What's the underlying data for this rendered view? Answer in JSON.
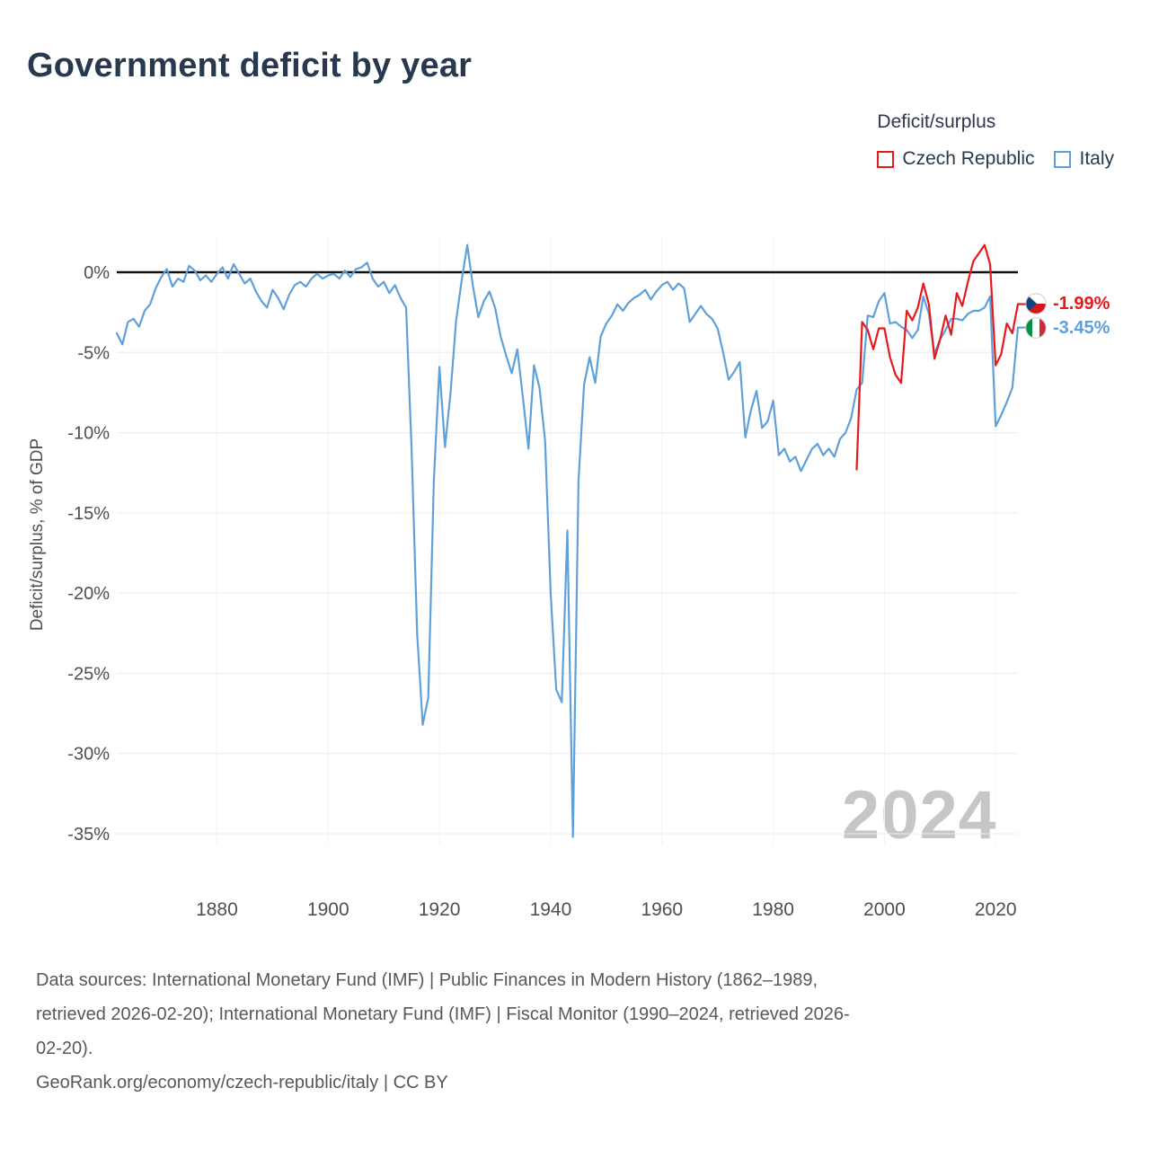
{
  "title": "Government deficit by year",
  "legend": {
    "title": "Deficit/surplus",
    "items": [
      {
        "label": "Czech Republic",
        "color": "#e8191d"
      },
      {
        "label": "Italy",
        "color": "#5fa0da"
      }
    ]
  },
  "watermark": "2024",
  "end_labels": [
    {
      "series": "Czech Republic",
      "value": "-1.99%",
      "color": "#e8191d",
      "icon": "czech-flag-icon"
    },
    {
      "series": "Italy",
      "value": "-3.45%",
      "color": "#5fa0da",
      "icon": "italy-flag-icon"
    }
  ],
  "footer": {
    "lines": [
      "Data sources: International Monetary Fund (IMF) | Public Finances in Modern History (1862–1989,",
      "retrieved 2026-02-20); International Monetary Fund (IMF) | Fiscal Monitor (1990–2024, retrieved 2026-",
      "02-20).",
      "GeoRank.org/economy/czech-republic/italy | CC BY"
    ]
  },
  "chart_data": {
    "type": "line",
    "title": "Government deficit by year",
    "ylabel": "Deficit/surplus, % of GDP",
    "xlabel": "",
    "grid": true,
    "legend_position": "top-right",
    "ylim": [
      -36,
      2.5
    ],
    "xlim": [
      1862,
      2024
    ],
    "yticks": [
      "0%",
      "-5%",
      "-10%",
      "-15%",
      "-20%",
      "-25%",
      "-30%",
      "-35%"
    ],
    "xticks": [
      "1880",
      "1900",
      "1920",
      "1940",
      "1960",
      "1980",
      "2000",
      "2020"
    ],
    "series": [
      {
        "name": "Czech Republic",
        "color": "#e8191d",
        "start_year": 1995,
        "end_year": 2024,
        "values": [
          -12.3,
          -3.1,
          -3.6,
          -4.8,
          -3.5,
          -3.5,
          -5.3,
          -6.4,
          -6.9,
          -2.4,
          -3.0,
          -2.2,
          -0.7,
          -2.0,
          -5.4,
          -4.2,
          -2.7,
          -3.9,
          -1.3,
          -2.1,
          -0.6,
          0.7,
          1.2,
          1.7,
          0.5,
          -5.8,
          -5.1,
          -3.2,
          -3.8,
          -1.99
        ]
      },
      {
        "name": "Italy",
        "color": "#5fa0da",
        "start_year": 1862,
        "end_year": 2024,
        "values": [
          -3.8,
          -4.5,
          -3.1,
          -2.9,
          -3.4,
          -2.4,
          -2.0,
          -1.0,
          -0.3,
          0.2,
          -0.9,
          -0.4,
          -0.6,
          0.4,
          0.1,
          -0.5,
          -0.2,
          -0.6,
          -0.1,
          0.3,
          -0.4,
          0.5,
          -0.1,
          -0.7,
          -0.4,
          -1.2,
          -1.8,
          -2.2,
          -1.1,
          -1.6,
          -2.3,
          -1.4,
          -0.8,
          -0.6,
          -0.9,
          -0.4,
          -0.1,
          -0.4,
          -0.2,
          -0.1,
          -0.4,
          0.1,
          -0.3,
          0.2,
          0.3,
          0.6,
          -0.4,
          -0.9,
          -0.6,
          -1.3,
          -0.8,
          -1.6,
          -2.2,
          -11.0,
          -22.5,
          -28.2,
          -26.5,
          -13.0,
          -5.9,
          -10.9,
          -7.5,
          -3.0,
          -0.5,
          1.7,
          -0.8,
          -2.8,
          -1.8,
          -1.2,
          -2.2,
          -4.0,
          -5.2,
          -6.3,
          -4.8,
          -7.8,
          -11.0,
          -5.8,
          -7.2,
          -10.5,
          -20.0,
          -26.0,
          -26.8,
          -16.1,
          -35.2,
          -13.0,
          -7.0,
          -5.3,
          -6.9,
          -4.0,
          -3.2,
          -2.7,
          -2.0,
          -2.4,
          -1.9,
          -1.6,
          -1.4,
          -1.1,
          -1.7,
          -1.2,
          -0.8,
          -0.6,
          -1.1,
          -0.7,
          -1.0,
          -3.1,
          -2.6,
          -2.1,
          -2.6,
          -2.9,
          -3.5,
          -5.0,
          -6.7,
          -6.2,
          -5.6,
          -10.3,
          -8.6,
          -7.4,
          -9.7,
          -9.3,
          -8.0,
          -11.4,
          -11.0,
          -11.8,
          -11.5,
          -12.4,
          -11.7,
          -11.0,
          -10.7,
          -11.4,
          -11.0,
          -11.5,
          -10.4,
          -10.0,
          -9.1,
          -7.3,
          -6.9,
          -2.7,
          -2.8,
          -1.8,
          -1.3,
          -3.2,
          -3.1,
          -3.4,
          -3.6,
          -4.1,
          -3.6,
          -1.5,
          -2.6,
          -5.1,
          -4.2,
          -3.6,
          -2.9,
          -2.9,
          -3.0,
          -2.6,
          -2.4,
          -2.4,
          -2.2,
          -1.5,
          -9.6,
          -8.9,
          -8.1,
          -7.2,
          -3.45
        ]
      }
    ]
  }
}
